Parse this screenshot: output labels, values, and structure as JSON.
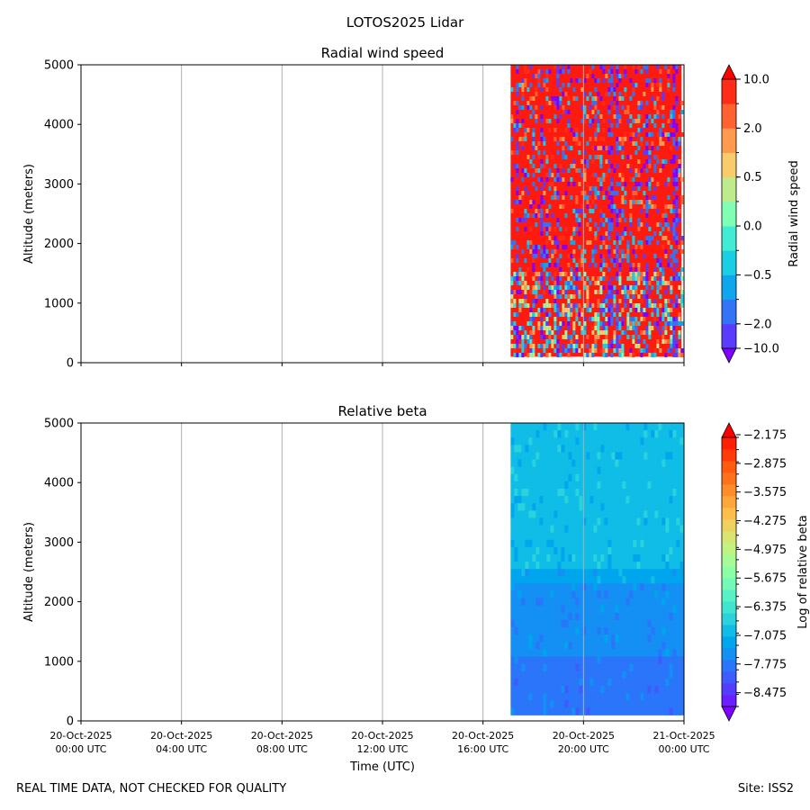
{
  "suptitle": "LOTOS2025 Lidar",
  "footer": {
    "left": "REAL TIME DATA, NOT CHECKED FOR QUALITY",
    "right": "Site: ISS2"
  },
  "chart_data": [
    {
      "type": "heatmap",
      "title": "Radial wind speed",
      "ylabel": "Altitude (meters)",
      "ylim": [
        0,
        5000
      ],
      "yticks": [
        "0",
        "1000",
        "2000",
        "3000",
        "4000",
        "5000"
      ],
      "xlim_hours": [
        0,
        24
      ],
      "data_range_hours": [
        17.1,
        23.9
      ],
      "data_range_altitude": [
        100,
        5000
      ],
      "show_xticklabels": false,
      "colorbar": {
        "label": "Radial wind speed",
        "ticks": [
          "10.0",
          "2.0",
          "0.5",
          "0.0",
          "−0.5",
          "−2.0",
          "−10.0"
        ],
        "colors": [
          "#8000ff",
          "#5a3cfe",
          "#3473f8",
          "#0fa6ee",
          "#1acfe3",
          "#40ecd4",
          "#80ffb4",
          "#c0eb8d",
          "#f9cc6b",
          "#ff9a4e",
          "#ff6230",
          "#ff2d17",
          "#ff0000"
        ]
      }
    },
    {
      "type": "heatmap",
      "title": "Relative beta",
      "ylabel": "Altitude (meters)",
      "ylim": [
        0,
        5000
      ],
      "yticks": [
        "0",
        "1000",
        "2000",
        "3000",
        "4000",
        "5000"
      ],
      "xlim_hours": [
        0,
        24
      ],
      "data_range_hours": [
        17.1,
        23.9
      ],
      "data_range_altitude": [
        100,
        5000
      ],
      "show_xticklabels": true,
      "xticks": [
        {
          "line1": "20-Oct-2025",
          "line2": "00:00 UTC"
        },
        {
          "line1": "20-Oct-2025",
          "line2": "04:00 UTC"
        },
        {
          "line1": "20-Oct-2025",
          "line2": "08:00 UTC"
        },
        {
          "line1": "20-Oct-2025",
          "line2": "12:00 UTC"
        },
        {
          "line1": "20-Oct-2025",
          "line2": "16:00 UTC"
        },
        {
          "line1": "20-Oct-2025",
          "line2": "20:00 UTC"
        },
        {
          "line1": "21-Oct-2025",
          "line2": "00:00 UTC"
        }
      ],
      "xlabel": "Time (UTC)",
      "colorbar": {
        "label": "Log of relative beta",
        "ticks": [
          "−2.175",
          "−2.875",
          "−3.575",
          "−4.275",
          "−4.975",
          "−5.675",
          "−6.375",
          "−7.075",
          "−7.775",
          "−8.475"
        ],
        "colors": [
          "#8000ff",
          "#6b1efe",
          "#553cfe",
          "#3f5afd",
          "#2a75f9",
          "#148ff3",
          "#00a6ed",
          "#0fbde6",
          "#2ad2dc",
          "#40e5d2",
          "#58f2c6",
          "#72fbb6",
          "#8cffa6",
          "#a6fb96",
          "#c0f284",
          "#d8e572",
          "#efd25e",
          "#ffbd4c",
          "#ffa63a",
          "#ff8c2a",
          "#ff721c",
          "#ff5a10",
          "#ff3c08",
          "#ff1e02",
          "#ff0000"
        ]
      }
    }
  ]
}
